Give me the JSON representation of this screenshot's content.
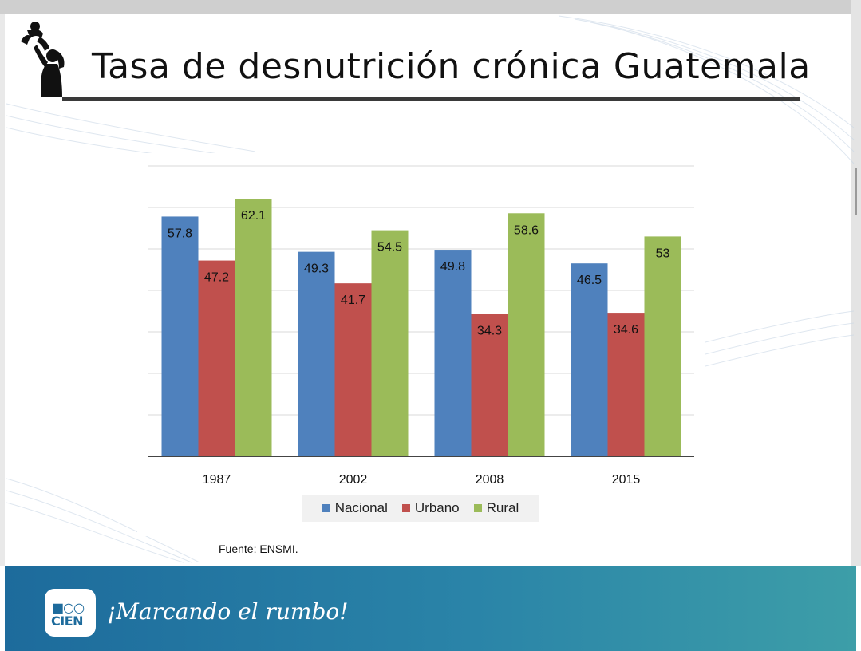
{
  "title": "Tasa de desnutrición crónica Guatemala",
  "source": "Fuente: ENSMI.",
  "footer": {
    "logo_top": "■○○",
    "logo_bottom": "CIEN",
    "slogan": "¡Marcando el rumbo!"
  },
  "colors": {
    "nacional": "#4f81bd",
    "urbano": "#c0504d",
    "rural": "#9bbb59",
    "footer": "#1d6b9c"
  },
  "chart_data": {
    "type": "bar",
    "title": "",
    "xlabel": "",
    "ylabel": "",
    "categories": [
      "1987",
      "2002",
      "2008",
      "2015"
    ],
    "series": [
      {
        "name": "Nacional",
        "values": [
          57.8,
          49.3,
          49.8,
          46.5
        ]
      },
      {
        "name": "Urbano",
        "values": [
          47.2,
          41.7,
          34.3,
          34.6
        ]
      },
      {
        "name": "Rural",
        "values": [
          62.1,
          54.5,
          58.6,
          53
        ]
      }
    ],
    "ylim": [
      0,
      70
    ],
    "grid": true,
    "legend_position": "bottom"
  }
}
